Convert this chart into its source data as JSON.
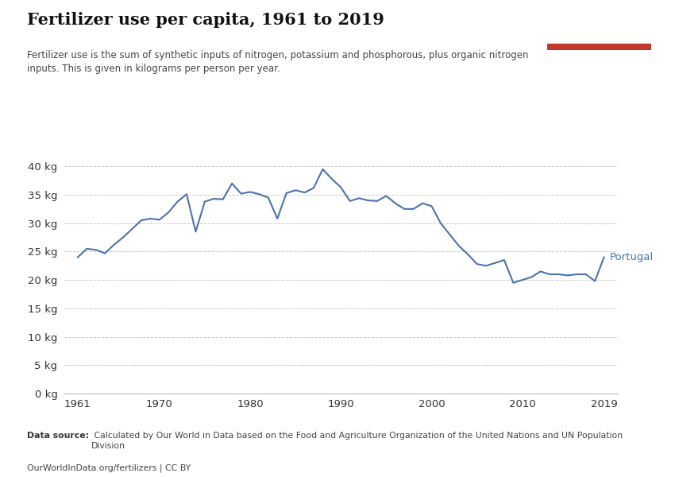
{
  "title": "Fertilizer use per capita, 1961 to 2019",
  "subtitle": "Fertilizer use is the sum of synthetic inputs of nitrogen, potassium and phosphorous, plus organic nitrogen\ninputs. This is given in kilograms per person per year.",
  "datasource_bold": "Data source:",
  "datasource_rest": " Calculated by Our World in Data based on the Food and Agriculture Organization of the United Nations and UN Population\nDivision",
  "license": "OurWorldInData.org/fertilizers | CC BY",
  "country_label": "Portugal",
  "line_color": "#4c72b0",
  "label_color": "#4c72b0",
  "background_color": "#ffffff",
  "grid_color": "#cccccc",
  "logo_bg": "#1a3a5c",
  "logo_red": "#c0392b",
  "years": [
    1961,
    1962,
    1963,
    1964,
    1965,
    1966,
    1967,
    1968,
    1969,
    1970,
    1971,
    1972,
    1973,
    1974,
    1975,
    1976,
    1977,
    1978,
    1979,
    1980,
    1981,
    1982,
    1983,
    1984,
    1985,
    1986,
    1987,
    1988,
    1989,
    1990,
    1991,
    1992,
    1993,
    1994,
    1995,
    1996,
    1997,
    1998,
    1999,
    2000,
    2001,
    2002,
    2003,
    2004,
    2005,
    2006,
    2007,
    2008,
    2009,
    2010,
    2011,
    2012,
    2013,
    2014,
    2015,
    2016,
    2017,
    2018,
    2019
  ],
  "values": [
    24.0,
    25.5,
    25.3,
    24.7,
    26.2,
    27.5,
    29.0,
    30.5,
    30.8,
    30.6,
    31.9,
    33.8,
    35.1,
    28.5,
    33.8,
    34.3,
    34.2,
    37.0,
    35.2,
    35.5,
    35.1,
    34.5,
    30.8,
    35.3,
    35.8,
    35.4,
    36.2,
    39.5,
    37.8,
    36.3,
    33.9,
    34.4,
    34.0,
    33.9,
    34.8,
    33.5,
    32.5,
    32.5,
    33.5,
    33.0,
    30.0,
    28.0,
    26.0,
    24.5,
    22.8,
    22.5,
    23.0,
    23.5,
    19.5,
    20.0,
    20.5,
    21.5,
    21.0,
    21.0,
    20.8,
    21.0,
    21.0,
    19.8,
    24.0
  ],
  "yticks": [
    0,
    5,
    10,
    15,
    20,
    25,
    30,
    35,
    40
  ],
  "ytick_labels": [
    "0 kg",
    "5 kg",
    "10 kg",
    "15 kg",
    "20 kg",
    "25 kg",
    "30 kg",
    "35 kg",
    "40 kg"
  ],
  "xticks": [
    1961,
    1970,
    1980,
    1990,
    2000,
    2010,
    2019
  ],
  "xlim": [
    1959.5,
    2020.5
  ],
  "ylim": [
    0,
    42
  ]
}
